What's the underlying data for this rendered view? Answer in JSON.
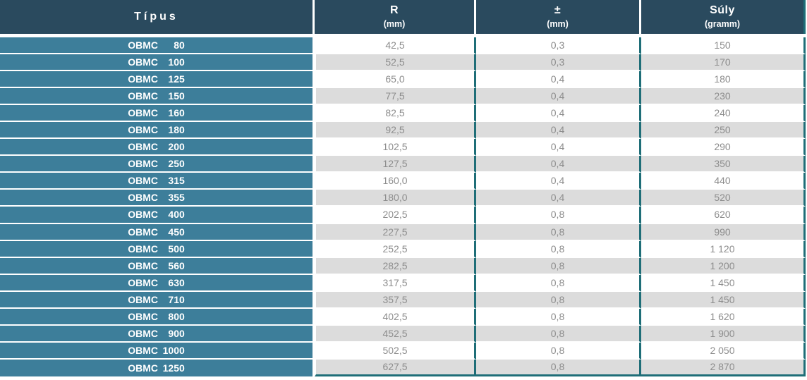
{
  "chart_data": {
    "type": "table",
    "columns": [
      {
        "label": "Típus",
        "unit": ""
      },
      {
        "label": "R",
        "unit": "(mm)"
      },
      {
        "label": "±",
        "unit": "(mm)"
      },
      {
        "label": "Súly",
        "unit": "(gramm)"
      }
    ],
    "rows": [
      {
        "prefix": "OBMC",
        "size": "80",
        "r": "42,5",
        "tol": "0,3",
        "suly": "150"
      },
      {
        "prefix": "OBMC",
        "size": "100",
        "r": "52,5",
        "tol": "0,3",
        "suly": "170"
      },
      {
        "prefix": "OBMC",
        "size": "125",
        "r": "65,0",
        "tol": "0,4",
        "suly": "180"
      },
      {
        "prefix": "OBMC",
        "size": "150",
        "r": "77,5",
        "tol": "0,4",
        "suly": "230"
      },
      {
        "prefix": "OBMC",
        "size": "160",
        "r": "82,5",
        "tol": "0,4",
        "suly": "240"
      },
      {
        "prefix": "OBMC",
        "size": "180",
        "r": "92,5",
        "tol": "0,4",
        "suly": "250"
      },
      {
        "prefix": "OBMC",
        "size": "200",
        "r": "102,5",
        "tol": "0,4",
        "suly": "290"
      },
      {
        "prefix": "OBMC",
        "size": "250",
        "r": "127,5",
        "tol": "0,4",
        "suly": "350"
      },
      {
        "prefix": "OBMC",
        "size": "315",
        "r": "160,0",
        "tol": "0,4",
        "suly": "440"
      },
      {
        "prefix": "OBMC",
        "size": "355",
        "r": "180,0",
        "tol": "0,4",
        "suly": "520"
      },
      {
        "prefix": "OBMC",
        "size": "400",
        "r": "202,5",
        "tol": "0,8",
        "suly": "620"
      },
      {
        "prefix": "OBMC",
        "size": "450",
        "r": "227,5",
        "tol": "0,8",
        "suly": "990"
      },
      {
        "prefix": "OBMC",
        "size": "500",
        "r": "252,5",
        "tol": "0,8",
        "suly": "1 120"
      },
      {
        "prefix": "OBMC",
        "size": "560",
        "r": "282,5",
        "tol": "0,8",
        "suly": "1 200"
      },
      {
        "prefix": "OBMC",
        "size": "630",
        "r": "317,5",
        "tol": "0,8",
        "suly": "1 450"
      },
      {
        "prefix": "OBMC",
        "size": "710",
        "r": "357,5",
        "tol": "0,8",
        "suly": "1 450"
      },
      {
        "prefix": "OBMC",
        "size": "800",
        "r": "402,5",
        "tol": "0,8",
        "suly": "1 620"
      },
      {
        "prefix": "OBMC",
        "size": "900",
        "r": "452,5",
        "tol": "0,8",
        "suly": "1 900"
      },
      {
        "prefix": "OBMC",
        "size": "1000",
        "r": "502,5",
        "tol": "0,8",
        "suly": "2 050"
      },
      {
        "prefix": "OBMC",
        "size": "1250",
        "r": "627,5",
        "tol": "0,8",
        "suly": "2 870"
      }
    ]
  },
  "colors": {
    "header_bg": "#2a4a5e",
    "type_col_bg": "#3d7e9a",
    "row_alt_bg": "#dcdcdc",
    "grid_line": "#1f6e78",
    "header_text": "#ffffff",
    "data_text": "#8d8d8d"
  }
}
